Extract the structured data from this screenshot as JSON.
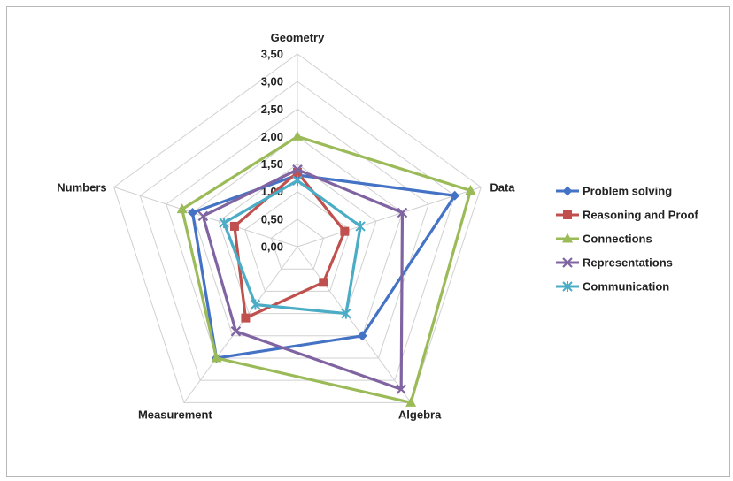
{
  "chart_data": {
    "type": "radar",
    "axes": [
      "Geometry",
      "Data",
      "Algebra",
      "Measurement",
      "Numbers"
    ],
    "ticks": [
      "0,00",
      "0,50",
      "1,00",
      "1,50",
      "2,00",
      "2,50",
      "3,00",
      "3,50"
    ],
    "rlim": [
      0,
      3.5
    ],
    "tick_step": 0.5,
    "grid": true,
    "legend_position": "right",
    "series": [
      {
        "name": "Problem solving",
        "color": "#4472c4",
        "marker": "diamond",
        "values": [
          1.3,
          3.0,
          2.0,
          2.5,
          2.0
        ]
      },
      {
        "name": "Reasoning and Proof",
        "color": "#c0504d",
        "marker": "square",
        "values": [
          1.35,
          0.9,
          0.8,
          1.6,
          1.2
        ]
      },
      {
        "name": "Connections",
        "color": "#9bbb59",
        "marker": "triangle",
        "values": [
          2.0,
          3.3,
          3.5,
          2.5,
          2.2
        ]
      },
      {
        "name": "Representations",
        "color": "#8064a2",
        "marker": "x",
        "values": [
          1.4,
          2.0,
          3.2,
          1.9,
          1.8
        ]
      },
      {
        "name": "Communication",
        "color": "#4bacc6",
        "marker": "star",
        "values": [
          1.2,
          1.2,
          1.5,
          1.3,
          1.4
        ]
      }
    ]
  }
}
